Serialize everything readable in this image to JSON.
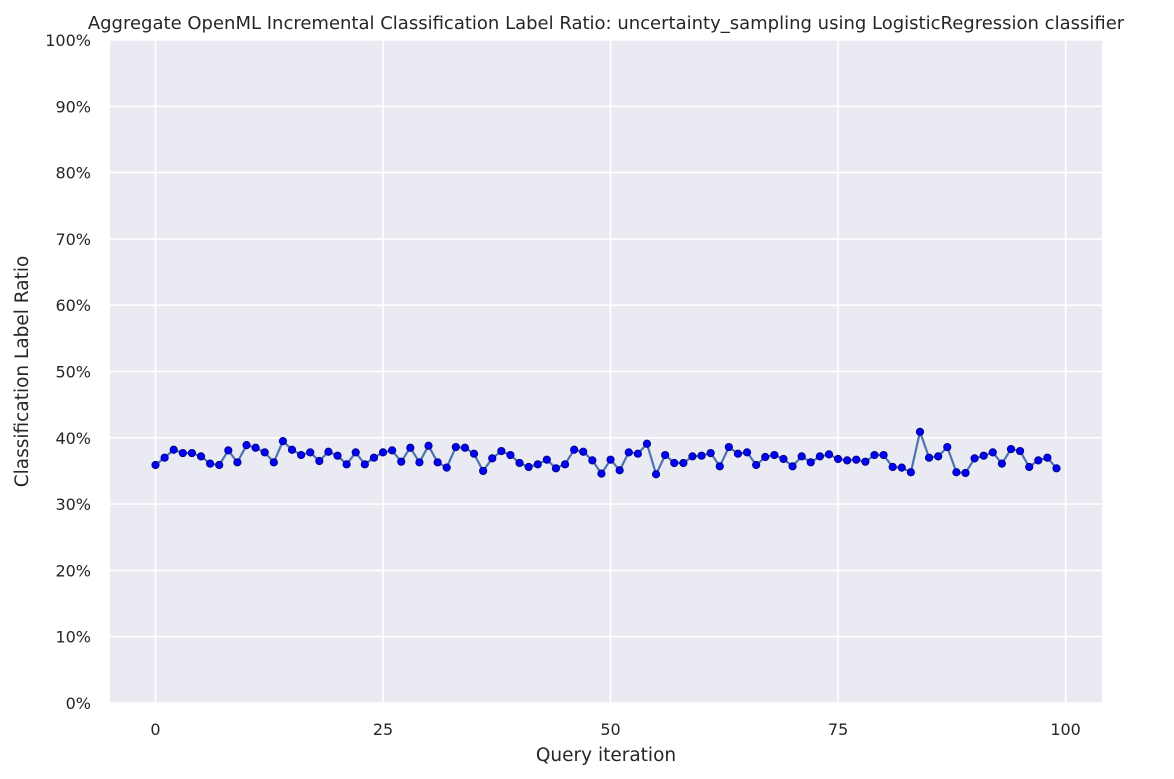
{
  "chart_data": {
    "type": "line",
    "title": "Aggregate OpenML Incremental Classification Label Ratio: uncertainty_sampling using LogisticRegression classifier",
    "xlabel": "Query iteration",
    "ylabel": "Classification Label Ratio",
    "xlim": [
      -5.0,
      104.0
    ],
    "ylim": [
      0,
      1
    ],
    "xticks": [
      0,
      25,
      50,
      75,
      100
    ],
    "xtick_labels": [
      "0",
      "25",
      "50",
      "75",
      "100"
    ],
    "yticks": [
      0,
      0.1,
      0.2,
      0.3,
      0.4,
      0.5,
      0.6,
      0.7,
      0.8,
      0.9,
      1.0
    ],
    "ytick_labels": [
      "0%",
      "10%",
      "20%",
      "30%",
      "40%",
      "50%",
      "60%",
      "70%",
      "80%",
      "90%",
      "100%"
    ],
    "grid": true,
    "legend": false,
    "colors": {
      "background": "#eaeaf2",
      "grid": "#ffffff",
      "line": "#4c72b0",
      "marker": "#0000ff",
      "marker_edge": "#00008b",
      "text": "#262626"
    },
    "series": [
      {
        "x": [
          0,
          1,
          2,
          3,
          4,
          5,
          6,
          7,
          8,
          9,
          10,
          11,
          12,
          13,
          14,
          15,
          16,
          17,
          18,
          19,
          20,
          21,
          22,
          23,
          24,
          25,
          26,
          27,
          28,
          29,
          30,
          31,
          32,
          33,
          34,
          35,
          36,
          37,
          38,
          39,
          40,
          41,
          42,
          43,
          44,
          45,
          46,
          47,
          48,
          49,
          50,
          51,
          52,
          53,
          54,
          55,
          56,
          57,
          58,
          59,
          60,
          61,
          62,
          63,
          64,
          65,
          66,
          67,
          68,
          69,
          70,
          71,
          72,
          73,
          74,
          75,
          76,
          77,
          78,
          79,
          80,
          81,
          82,
          83,
          84,
          85,
          86,
          87,
          88,
          89,
          90,
          91,
          92,
          93,
          94,
          95,
          96,
          97,
          98,
          99
        ],
        "y": [
          0.359,
          0.37,
          0.382,
          0.377,
          0.377,
          0.372,
          0.361,
          0.359,
          0.381,
          0.363,
          0.389,
          0.385,
          0.378,
          0.363,
          0.395,
          0.382,
          0.374,
          0.378,
          0.365,
          0.379,
          0.373,
          0.36,
          0.378,
          0.36,
          0.37,
          0.378,
          0.381,
          0.364,
          0.385,
          0.363,
          0.388,
          0.363,
          0.355,
          0.386,
          0.385,
          0.376,
          0.35,
          0.369,
          0.38,
          0.374,
          0.362,
          0.356,
          0.36,
          0.367,
          0.354,
          0.36,
          0.382,
          0.379,
          0.366,
          0.346,
          0.367,
          0.351,
          0.378,
          0.376,
          0.391,
          0.345,
          0.374,
          0.362,
          0.362,
          0.372,
          0.373,
          0.377,
          0.357,
          0.386,
          0.376,
          0.378,
          0.359,
          0.371,
          0.374,
          0.368,
          0.357,
          0.372,
          0.363,
          0.372,
          0.375,
          0.368,
          0.366,
          0.367,
          0.364,
          0.374,
          0.374,
          0.356,
          0.355,
          0.348,
          0.409,
          0.37,
          0.372,
          0.386,
          0.348,
          0.347,
          0.369,
          0.373,
          0.378,
          0.361,
          0.383,
          0.38,
          0.356,
          0.366,
          0.37,
          0.354
        ]
      }
    ]
  }
}
